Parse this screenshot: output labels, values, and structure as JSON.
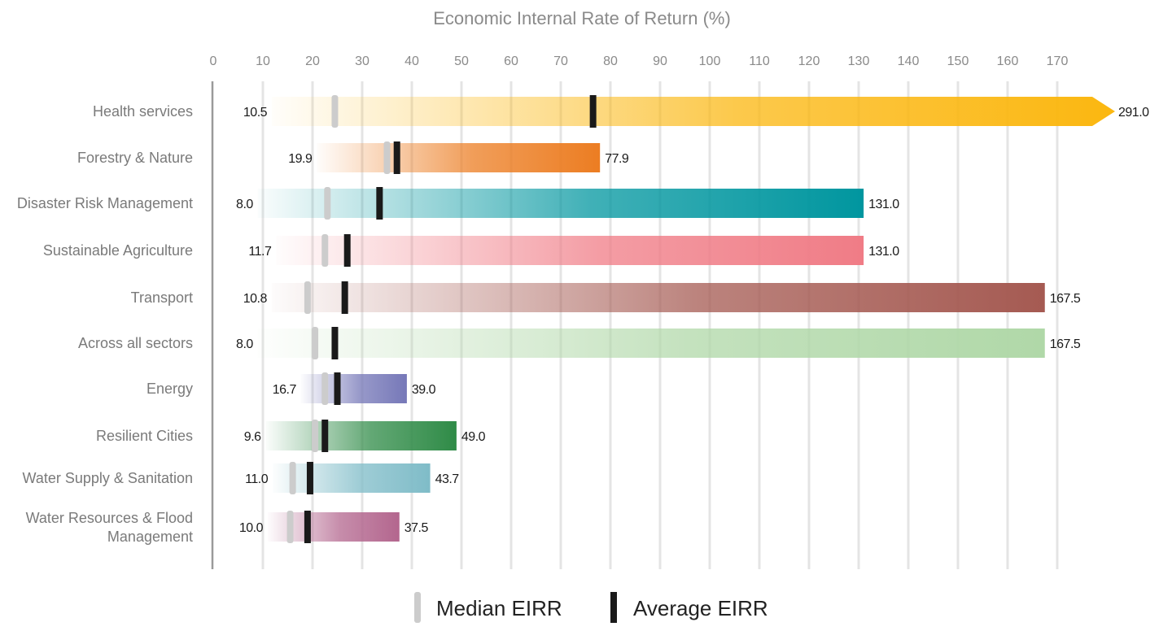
{
  "chart_data": {
    "type": "bar",
    "title": "Economic Internal Rate of Return (%)",
    "x_ticks": [
      0,
      10,
      20,
      30,
      40,
      50,
      60,
      70,
      80,
      90,
      100,
      110,
      120,
      130,
      140,
      150,
      160,
      170
    ],
    "xlim": [
      0,
      180
    ],
    "grid": true,
    "categories": [
      "Health services",
      "Forestry & Nature",
      "Disaster Risk Management",
      "Sustainable Agriculture",
      "Transport",
      "Across all sectors",
      "Energy",
      "Resilient Cities",
      "Water Supply & Sanitation",
      "Water Resources & Flood Management"
    ],
    "min": [
      10.5,
      19.9,
      8.0,
      11.7,
      10.8,
      8.0,
      16.7,
      9.6,
      11.0,
      10.0
    ],
    "max": [
      291.0,
      77.9,
      131.0,
      131.0,
      167.5,
      167.5,
      39.0,
      49.0,
      43.7,
      37.5
    ],
    "min_labels": [
      "10.5",
      "19.9",
      "8.0",
      "11.7",
      "10.8",
      "8.0",
      "16.7",
      "9.6",
      "11.0",
      "10.0"
    ],
    "max_labels": [
      "291.0",
      "77.9",
      "131.0",
      "131.0",
      "167.5",
      "167.5",
      "39.0",
      "49.0",
      "43.7",
      "37.5"
    ],
    "median": [
      24.5,
      35,
      23,
      22.5,
      19,
      20.5,
      22.5,
      20.5,
      16,
      15.5
    ],
    "average": [
      76.5,
      37,
      33.5,
      27,
      26.5,
      24.5,
      25,
      22.5,
      19.5,
      19
    ],
    "colors": [
      "#fbb710",
      "#ec7d22",
      "#00969f",
      "#f07c86",
      "#a55a52",
      "#b0d8a8",
      "#7678b8",
      "#2f8b47",
      "#7fbcc8",
      "#b3668e"
    ],
    "legend": {
      "position": "bottom",
      "items": [
        {
          "label": "Median EIRR",
          "color": "#cccccc"
        },
        {
          "label": "Average EIRR",
          "color": "#1a1a1a"
        }
      ]
    }
  }
}
